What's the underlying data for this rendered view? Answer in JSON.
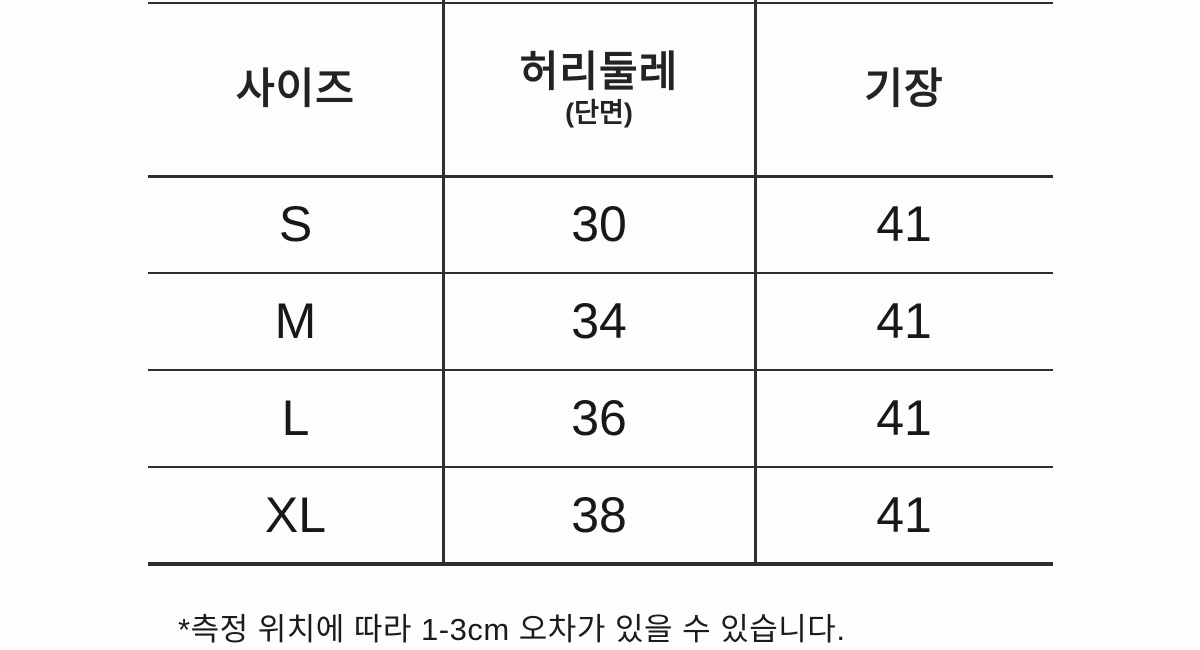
{
  "chart_data": {
    "type": "table",
    "title": "size-chart",
    "unit_hint": "cm",
    "columns": [
      {
        "label": "사이즈",
        "sublabel": ""
      },
      {
        "label": "허리둘레",
        "sublabel": "(단면)"
      },
      {
        "label": "기장",
        "sublabel": ""
      }
    ],
    "rows": [
      {
        "size": "S",
        "waist_cm": "30",
        "length_cm": "41"
      },
      {
        "size": "M",
        "waist_cm": "34",
        "length_cm": "41"
      },
      {
        "size": "L",
        "waist_cm": "36",
        "length_cm": "41"
      },
      {
        "size": "XL",
        "waist_cm": "38",
        "length_cm": "41"
      }
    ],
    "footnote": "*측정 위치에 따라 1-3cm 오차가 있을 수 있습니다."
  },
  "colors": {
    "background": "#fdfdfd",
    "line": "#2f2f31",
    "text": "#1c1c1e"
  }
}
